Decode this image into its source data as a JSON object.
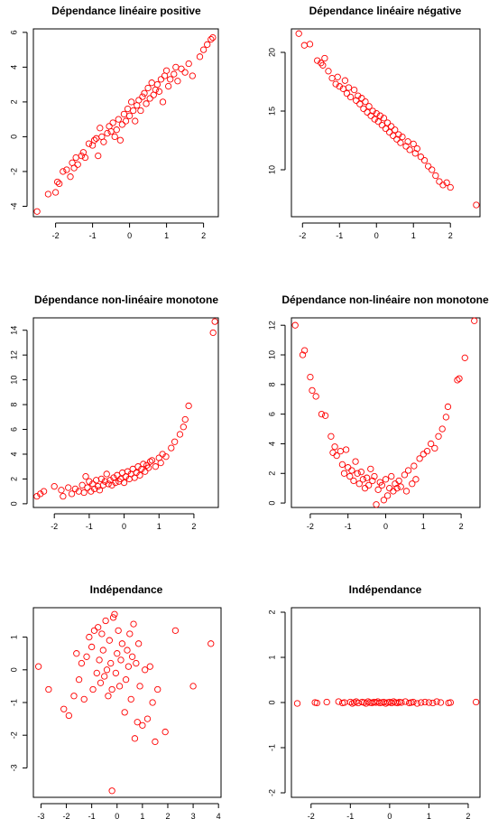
{
  "chart_data": [
    {
      "type": "scatter",
      "title": "Dépendance linéaire positive",
      "xlabel": "",
      "ylabel": "",
      "xlim": [
        -2.6,
        2.4
      ],
      "ylim": [
        -4.6,
        6.2
      ],
      "xticks": [
        -2,
        -1,
        0,
        1,
        2
      ],
      "yticks": [
        -4,
        -2,
        0,
        2,
        4,
        6
      ],
      "xtick_labels": [
        "-2",
        "-1",
        "0",
        "1",
        "2"
      ],
      "ytick_labels": [
        "-4",
        "-2",
        "0",
        "2",
        "4",
        "6"
      ],
      "point_color": "#ff0000",
      "x": [
        -2.5,
        -2.2,
        -2.0,
        -1.95,
        -1.9,
        -1.8,
        -1.7,
        -1.6,
        -1.55,
        -1.5,
        -1.45,
        -1.4,
        -1.3,
        -1.25,
        -1.2,
        -1.1,
        -1.0,
        -0.95,
        -0.9,
        -0.85,
        -0.8,
        -0.75,
        -0.7,
        -0.6,
        -0.55,
        -0.5,
        -0.45,
        -0.4,
        -0.35,
        -0.3,
        -0.25,
        -0.2,
        -0.15,
        -0.1,
        -0.05,
        0.0,
        0.05,
        0.1,
        0.15,
        0.2,
        0.25,
        0.3,
        0.35,
        0.4,
        0.45,
        0.5,
        0.55,
        0.6,
        0.65,
        0.7,
        0.75,
        0.8,
        0.85,
        0.9,
        0.95,
        1.0,
        1.05,
        1.1,
        1.2,
        1.25,
        1.3,
        1.4,
        1.5,
        1.6,
        1.7,
        1.9,
        2.0,
        2.1,
        2.2,
        2.25
      ],
      "y": [
        -4.3,
        -3.3,
        -3.2,
        -2.6,
        -2.7,
        -2.0,
        -1.9,
        -2.3,
        -1.5,
        -1.8,
        -1.2,
        -1.6,
        -1.1,
        -0.9,
        -1.2,
        -0.4,
        -0.5,
        -0.2,
        -0.1,
        -1.1,
        0.5,
        0.0,
        -0.3,
        0.2,
        0.6,
        0.3,
        0.8,
        0.0,
        0.4,
        1.0,
        -0.2,
        0.7,
        1.3,
        0.9,
        1.6,
        1.2,
        2.0,
        1.5,
        0.9,
        1.8,
        2.1,
        1.5,
        2.3,
        2.5,
        1.9,
        2.8,
        2.2,
        3.1,
        2.4,
        2.7,
        3.0,
        2.6,
        3.3,
        2.0,
        3.5,
        3.8,
        2.9,
        3.3,
        3.6,
        4.0,
        3.2,
        3.9,
        3.7,
        4.2,
        3.5,
        4.6,
        5.0,
        5.3,
        5.6,
        5.7
      ]
    },
    {
      "type": "scatter",
      "title": "Dépendance linéaire négative",
      "xlabel": "",
      "ylabel": "",
      "xlim": [
        -2.3,
        2.8
      ],
      "ylim": [
        6.0,
        22.0
      ],
      "xticks": [
        -2,
        -1,
        0,
        1,
        2
      ],
      "yticks": [
        10,
        15,
        20
      ],
      "xtick_labels": [
        "-2",
        "-1",
        "0",
        "1",
        "2"
      ],
      "ytick_labels": [
        "10",
        "15",
        "20"
      ],
      "point_color": "#ff0000",
      "x": [
        -2.1,
        -1.95,
        -1.8,
        -1.6,
        -1.5,
        -1.45,
        -1.4,
        -1.3,
        -1.2,
        -1.1,
        -1.05,
        -1.0,
        -0.9,
        -0.85,
        -0.8,
        -0.75,
        -0.7,
        -0.6,
        -0.55,
        -0.5,
        -0.45,
        -0.4,
        -0.35,
        -0.3,
        -0.25,
        -0.2,
        -0.15,
        -0.1,
        -0.05,
        0.0,
        0.05,
        0.1,
        0.15,
        0.2,
        0.25,
        0.3,
        0.35,
        0.4,
        0.45,
        0.5,
        0.55,
        0.6,
        0.65,
        0.7,
        0.8,
        0.85,
        0.9,
        1.0,
        1.05,
        1.1,
        1.2,
        1.3,
        1.4,
        1.5,
        1.6,
        1.7,
        1.8,
        1.9,
        2.0,
        2.7
      ],
      "y": [
        21.6,
        20.6,
        20.7,
        19.3,
        19.1,
        18.9,
        19.5,
        18.4,
        17.8,
        17.3,
        17.9,
        17.1,
        16.9,
        17.6,
        16.5,
        17.0,
        16.2,
        16.8,
        15.9,
        16.3,
        15.6,
        16.1,
        15.2,
        15.8,
        14.9,
        15.4,
        14.6,
        15.0,
        14.3,
        14.8,
        14.1,
        14.6,
        13.8,
        14.4,
        13.5,
        14.0,
        13.2,
        13.7,
        12.9,
        13.4,
        12.6,
        13.0,
        12.3,
        12.8,
        12.0,
        12.4,
        11.7,
        12.2,
        11.4,
        11.8,
        11.1,
        10.8,
        10.3,
        10.0,
        9.5,
        9.0,
        8.7,
        8.9,
        8.5,
        7.0
      ]
    },
    {
      "type": "scatter",
      "title": "Dépendance non-linéaire monotone",
      "xlabel": "",
      "ylabel": "",
      "xlim": [
        -2.6,
        2.7
      ],
      "ylim": [
        -0.3,
        15.0
      ],
      "xticks": [
        -2,
        -1,
        0,
        1,
        2
      ],
      "yticks": [
        0,
        2,
        4,
        6,
        8,
        10,
        12,
        14
      ],
      "xtick_labels": [
        "-2",
        "-1",
        "0",
        "1",
        "2"
      ],
      "ytick_labels": [
        "0",
        "2",
        "4",
        "6",
        "8",
        "10",
        "12",
        "14"
      ],
      "point_color": "#ff0000",
      "x": [
        -2.5,
        -2.4,
        -2.3,
        -2.0,
        -1.8,
        -1.75,
        -1.6,
        -1.5,
        -1.4,
        -1.3,
        -1.2,
        -1.15,
        -1.1,
        -1.05,
        -1.0,
        -0.95,
        -0.9,
        -0.85,
        -0.8,
        -0.75,
        -0.7,
        -0.65,
        -0.6,
        -0.55,
        -0.5,
        -0.45,
        -0.4,
        -0.35,
        -0.3,
        -0.25,
        -0.2,
        -0.15,
        -0.1,
        -0.05,
        0.0,
        0.05,
        0.1,
        0.15,
        0.2,
        0.25,
        0.3,
        0.35,
        0.4,
        0.45,
        0.5,
        0.55,
        0.6,
        0.65,
        0.7,
        0.75,
        0.8,
        0.9,
        1.0,
        1.05,
        1.1,
        1.2,
        1.35,
        1.45,
        1.6,
        1.7,
        1.75,
        1.85,
        2.55,
        2.6
      ],
      "y": [
        0.6,
        0.8,
        1.0,
        1.4,
        1.1,
        0.6,
        1.3,
        0.8,
        1.2,
        1.0,
        1.5,
        0.9,
        2.2,
        1.3,
        1.8,
        1.0,
        1.6,
        1.2,
        1.9,
        1.4,
        1.1,
        2.0,
        1.5,
        1.8,
        2.4,
        1.6,
        1.9,
        1.5,
        2.1,
        1.7,
        2.3,
        1.8,
        2.0,
        2.5,
        1.7,
        2.2,
        2.6,
        2.0,
        2.4,
        2.8,
        2.1,
        2.5,
        3.0,
        2.3,
        2.8,
        3.2,
        2.6,
        3.1,
        2.9,
        3.4,
        3.5,
        3.0,
        3.7,
        3.3,
        4.0,
        3.8,
        4.5,
        5.0,
        5.6,
        6.2,
        6.8,
        7.9,
        13.8,
        14.7
      ]
    },
    {
      "type": "scatter",
      "title": "Dépendance non-linéaire non monotone",
      "xlabel": "",
      "ylabel": "",
      "xlim": [
        -2.5,
        2.5
      ],
      "ylim": [
        -0.3,
        12.5
      ],
      "xticks": [
        -2,
        -1,
        0,
        1,
        2
      ],
      "yticks": [
        0,
        2,
        4,
        6,
        8,
        10,
        12
      ],
      "xtick_labels": [
        "-2",
        "-1",
        "0",
        "1",
        "2"
      ],
      "ytick_labels": [
        "0",
        "2",
        "4",
        "6",
        "8",
        "10",
        "12"
      ],
      "point_color": "#ff0000",
      "x": [
        -2.4,
        -2.2,
        -2.15,
        -2.0,
        -1.95,
        -1.85,
        -1.7,
        -1.6,
        -1.45,
        -1.4,
        -1.35,
        -1.3,
        -1.2,
        -1.15,
        -1.1,
        -1.05,
        -1.0,
        -0.95,
        -0.9,
        -0.85,
        -0.8,
        -0.75,
        -0.7,
        -0.65,
        -0.6,
        -0.55,
        -0.5,
        -0.45,
        -0.4,
        -0.35,
        -0.3,
        -0.25,
        -0.2,
        -0.15,
        -0.1,
        -0.05,
        0.0,
        0.05,
        0.1,
        0.15,
        0.2,
        0.25,
        0.3,
        0.35,
        0.4,
        0.5,
        0.55,
        0.6,
        0.7,
        0.75,
        0.8,
        0.9,
        1.0,
        1.1,
        1.2,
        1.3,
        1.4,
        1.5,
        1.6,
        1.65,
        1.9,
        1.95,
        2.1,
        2.35
      ],
      "y": [
        12.0,
        10.0,
        10.3,
        8.5,
        7.6,
        7.2,
        6.0,
        5.9,
        4.5,
        3.4,
        3.8,
        3.2,
        3.5,
        2.6,
        2.0,
        3.6,
        2.4,
        1.8,
        2.2,
        1.5,
        2.8,
        2.0,
        1.3,
        2.1,
        1.6,
        1.0,
        1.7,
        1.2,
        2.3,
        1.5,
        1.8,
        -0.1,
        0.9,
        1.4,
        1.2,
        0.2,
        1.6,
        0.5,
        1.0,
        1.8,
        0.8,
        1.3,
        1.0,
        1.5,
        1.1,
        1.9,
        0.8,
        2.2,
        1.3,
        2.5,
        1.6,
        3.0,
        3.3,
        3.5,
        4.0,
        3.7,
        4.5,
        5.0,
        5.8,
        6.5,
        8.3,
        8.4,
        9.8,
        12.3
      ]
    },
    {
      "type": "scatter",
      "title": "Indépendance",
      "xlabel": "",
      "ylabel": "",
      "xlim": [
        -3.3,
        4.1
      ],
      "ylim": [
        -3.9,
        1.9
      ],
      "xticks": [
        -3,
        -2,
        -1,
        0,
        1,
        2,
        3,
        4
      ],
      "yticks": [
        -3,
        -2,
        -1,
        0,
        1
      ],
      "xtick_labels": [
        "-3",
        "-2",
        "-1",
        "0",
        "1",
        "2",
        "3",
        "4"
      ],
      "ytick_labels": [
        "-3",
        "-2",
        "-1",
        "0",
        "1"
      ],
      "point_color": "#ff0000",
      "x": [
        -3.1,
        -2.7,
        -2.1,
        -1.9,
        -1.7,
        -1.6,
        -1.5,
        -1.4,
        -1.3,
        -1.2,
        -1.1,
        -1.0,
        -0.95,
        -0.9,
        -0.8,
        -0.75,
        -0.7,
        -0.65,
        -0.6,
        -0.55,
        -0.5,
        -0.45,
        -0.4,
        -0.35,
        -0.3,
        -0.25,
        -0.2,
        -0.15,
        -0.1,
        -0.05,
        0.0,
        0.05,
        0.1,
        0.15,
        0.2,
        0.3,
        0.35,
        0.4,
        0.45,
        0.5,
        0.55,
        0.6,
        0.65,
        0.7,
        0.75,
        0.8,
        0.85,
        0.9,
        1.0,
        1.1,
        1.2,
        1.3,
        1.4,
        1.5,
        1.6,
        1.9,
        2.3,
        3.0,
        3.7,
        -0.2
      ],
      "y": [
        0.1,
        -0.6,
        -1.2,
        -1.4,
        -0.8,
        0.5,
        -0.3,
        0.2,
        -0.9,
        0.4,
        1.0,
        0.7,
        -0.6,
        1.2,
        -0.1,
        1.3,
        0.3,
        -0.4,
        1.1,
        0.6,
        -0.2,
        1.5,
        0.0,
        -0.8,
        0.9,
        0.2,
        -0.6,
        1.6,
        1.7,
        -0.1,
        0.5,
        1.2,
        -0.5,
        0.3,
        0.8,
        -1.3,
        -0.3,
        0.6,
        0.1,
        1.1,
        -0.9,
        0.4,
        1.4,
        -2.1,
        0.2,
        -1.6,
        0.8,
        -0.5,
        -1.7,
        0.0,
        -1.5,
        0.1,
        -1.0,
        -2.2,
        -0.6,
        -1.9,
        1.2,
        -0.5,
        0.8,
        -3.7
      ]
    },
    {
      "type": "scatter",
      "title": "Indépendance",
      "xlabel": "",
      "ylabel": "",
      "xlim": [
        -2.5,
        2.3
      ],
      "ylim": [
        -2.1,
        2.1
      ],
      "xticks": [
        -2,
        -1,
        0,
        1,
        2
      ],
      "yticks": [
        -2,
        -1,
        0,
        1,
        2
      ],
      "xtick_labels": [
        "-2",
        "-1",
        "0",
        "1",
        "2"
      ],
      "ytick_labels": [
        "-2",
        "-1",
        "0",
        "1",
        "2"
      ],
      "point_color": "#ff0000",
      "x": [
        -2.35,
        -1.9,
        -1.85,
        -1.6,
        -1.3,
        -1.2,
        -1.15,
        -1.0,
        -0.95,
        -0.9,
        -0.85,
        -0.8,
        -0.7,
        -0.65,
        -0.6,
        -0.55,
        -0.5,
        -0.45,
        -0.4,
        -0.35,
        -0.3,
        -0.25,
        -0.2,
        -0.15,
        -0.1,
        -0.05,
        0.0,
        0.05,
        0.1,
        0.15,
        0.2,
        0.25,
        0.3,
        0.4,
        0.5,
        0.55,
        0.6,
        0.7,
        0.8,
        0.9,
        1.0,
        1.1,
        1.2,
        1.3,
        1.5,
        1.55,
        2.2
      ],
      "y": [
        -0.02,
        0.0,
        -0.01,
        0.01,
        0.02,
        -0.01,
        0.0,
        0.01,
        -0.02,
        0.0,
        0.02,
        -0.01,
        0.01,
        0.0,
        -0.02,
        0.02,
        0.0,
        -0.01,
        0.01,
        0.0,
        0.02,
        -0.01,
        0.0,
        0.01,
        -0.02,
        0.0,
        0.01,
        -0.01,
        0.02,
        0.0,
        -0.01,
        0.01,
        0.0,
        0.02,
        -0.01,
        0.0,
        0.01,
        -0.02,
        0.0,
        0.01,
        0.0,
        -0.01,
        0.02,
        0.0,
        -0.01,
        0.0,
        0.01
      ]
    }
  ]
}
